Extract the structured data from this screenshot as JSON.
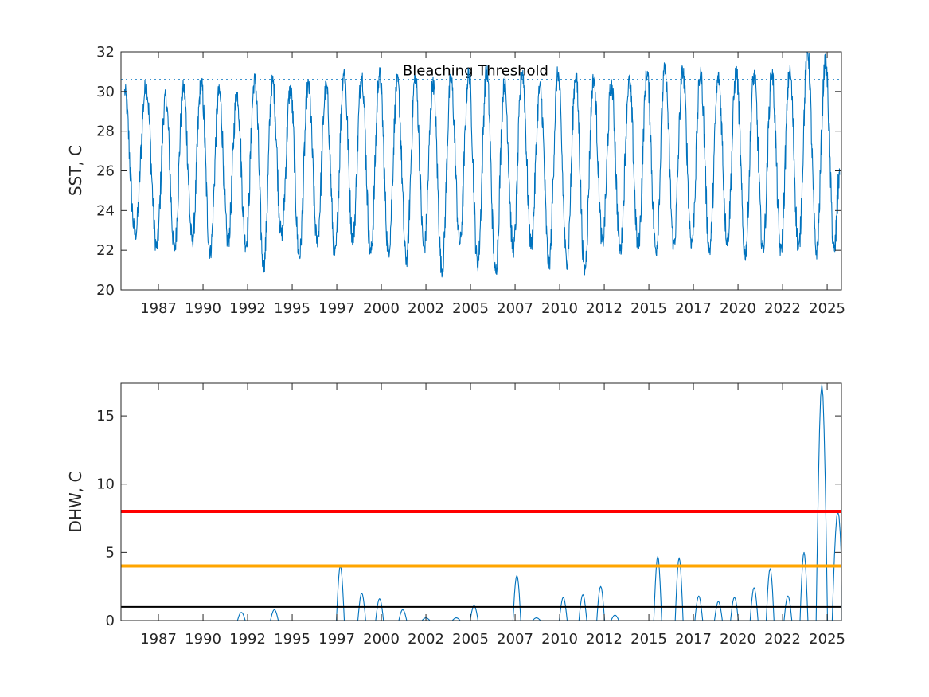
{
  "chart_data": [
    {
      "type": "line",
      "title": "",
      "xlabel": "",
      "ylabel": "SST, C",
      "ylim": [
        20,
        32
      ],
      "xlim": [
        1984.8,
        2025.2
      ],
      "grid": false,
      "legend": "none",
      "yticks": [
        "20",
        "22",
        "24",
        "26",
        "28",
        "30",
        "32"
      ],
      "xticks": [
        "1987",
        "1990",
        "1992",
        "1995",
        "1997",
        "2000",
        "2002",
        "2005",
        "2007",
        "2010",
        "2012",
        "2015",
        "2017",
        "2020",
        "2022",
        "2025"
      ],
      "xtick_values": [
        1986.9,
        1989.4,
        1991.9,
        1994.4,
        1996.9,
        1999.4,
        2001.9,
        2004.4,
        2006.9,
        2009.4,
        2011.9,
        2014.4,
        2016.9,
        2019.4,
        2021.9,
        2024.4
      ],
      "series": [
        {
          "color": "#0072BD",
          "x": [
            1985.0,
            1985.6,
            1986.2,
            1986.8,
            1987.3,
            1987.8,
            1988.3,
            1988.8,
            1989.3,
            1989.8,
            1990.3,
            1990.8,
            1991.3,
            1991.8,
            1992.3,
            1992.8,
            1993.3,
            1993.8,
            1994.3,
            1994.8,
            1995.3,
            1995.8,
            1996.3,
            1996.8,
            1997.3,
            1997.8,
            1998.3,
            1998.8,
            1999.3,
            1999.8,
            2000.3,
            2000.8,
            2001.3,
            2001.8,
            2002.3,
            2002.8,
            2003.3,
            2003.8,
            2004.3,
            2004.8,
            2005.3,
            2005.8,
            2006.3,
            2006.8,
            2007.3,
            2007.8,
            2008.3,
            2008.8,
            2009.3,
            2009.8,
            2010.3,
            2010.8,
            2011.3,
            2011.8,
            2012.3,
            2012.8,
            2013.3,
            2013.8,
            2014.3,
            2014.8,
            2015.3,
            2015.8,
            2016.3,
            2016.8,
            2017.3,
            2017.8,
            2018.3,
            2018.8,
            2019.3,
            2019.8,
            2020.3,
            2020.8,
            2021.3,
            2021.8,
            2022.3,
            2022.8,
            2023.3,
            2023.8,
            2024.3,
            2024.8,
            2025.1
          ],
          "y": [
            30.0,
            22.8,
            30.3,
            22.2,
            29.7,
            22.1,
            30.2,
            22.5,
            30.4,
            21.9,
            30.0,
            22.4,
            29.9,
            22.3,
            30.6,
            21.2,
            30.5,
            22.8,
            30.1,
            21.7,
            30.3,
            22.5,
            30.2,
            21.8,
            31.0,
            22.6,
            30.8,
            21.9,
            30.9,
            22.0,
            30.5,
            21.5,
            30.7,
            22.1,
            30.4,
            21.0,
            30.6,
            22.4,
            30.9,
            21.3,
            31.0,
            20.9,
            30.4,
            22.0,
            31.0,
            22.3,
            30.2,
            21.3,
            30.9,
            21.4,
            30.8,
            21.0,
            30.6,
            22.4,
            30.3,
            22.0,
            30.5,
            22.2,
            30.9,
            22.0,
            31.1,
            22.3,
            31.0,
            22.4,
            30.9,
            22.0,
            30.7,
            22.5,
            31.0,
            21.8,
            30.8,
            22.1,
            30.9,
            22.0,
            31.0,
            22.1,
            32.0,
            21.9,
            31.5,
            22.0,
            25.8
          ]
        }
      ],
      "reference_lines": [
        {
          "name": "Bleaching Threshold",
          "y": 30.6,
          "style": "dotted",
          "color": "#0072BD"
        }
      ],
      "annotations": [
        {
          "text": "Bleaching Threshold",
          "x": 2000.6,
          "y": 30.9
        }
      ]
    },
    {
      "type": "line",
      "title": "",
      "xlabel": "",
      "ylabel": "DHW, C",
      "ylim": [
        0,
        17.4
      ],
      "xlim": [
        1984.8,
        2025.2
      ],
      "grid": false,
      "legend": "none",
      "yticks": [
        "0",
        "5",
        "10",
        "15"
      ],
      "ytick_values": [
        0,
        5,
        10,
        15
      ],
      "xticks": [
        "1987",
        "1990",
        "1992",
        "1995",
        "1997",
        "2000",
        "2002",
        "2005",
        "2007",
        "2010",
        "2012",
        "2015",
        "2017",
        "2020",
        "2022",
        "2025"
      ],
      "xtick_values": [
        1986.9,
        1989.4,
        1991.9,
        1994.4,
        1996.9,
        1999.4,
        2001.9,
        2004.4,
        2006.9,
        2009.4,
        2011.9,
        2014.4,
        2016.9,
        2019.4,
        2021.9,
        2024.4
      ],
      "series": [
        {
          "color": "#0072BD",
          "events": [
            {
              "x": 1991.55,
              "peak": 0.6
            },
            {
              "x": 1993.4,
              "peak": 0.8
            },
            {
              "x": 1997.1,
              "peak": 4.0
            },
            {
              "x": 1998.3,
              "peak": 2.0
            },
            {
              "x": 1999.3,
              "peak": 1.6
            },
            {
              "x": 2000.6,
              "peak": 0.8
            },
            {
              "x": 2001.9,
              "peak": 0.2
            },
            {
              "x": 2003.6,
              "peak": 0.2
            },
            {
              "x": 2004.6,
              "peak": 1.1
            },
            {
              "x": 2007.0,
              "peak": 3.3
            },
            {
              "x": 2008.1,
              "peak": 0.2
            },
            {
              "x": 2009.6,
              "peak": 1.7
            },
            {
              "x": 2010.7,
              "peak": 1.9
            },
            {
              "x": 2011.7,
              "peak": 2.5
            },
            {
              "x": 2012.5,
              "peak": 0.4
            },
            {
              "x": 2014.9,
              "peak": 4.7
            },
            {
              "x": 2016.1,
              "peak": 4.6
            },
            {
              "x": 2017.2,
              "peak": 1.8
            },
            {
              "x": 2018.3,
              "peak": 1.4
            },
            {
              "x": 2019.2,
              "peak": 1.7
            },
            {
              "x": 2020.3,
              "peak": 2.4
            },
            {
              "x": 2021.2,
              "peak": 3.8
            },
            {
              "x": 2022.2,
              "peak": 1.8
            },
            {
              "x": 2023.1,
              "peak": 5.0
            },
            {
              "x": 2024.1,
              "peak": 17.3
            },
            {
              "x": 2025.0,
              "peak": 8.0
            }
          ]
        }
      ],
      "reference_lines": [
        {
          "y": 8,
          "color": "#FF0000",
          "style": "solid"
        },
        {
          "y": 4,
          "color": "#FFA500",
          "style": "solid"
        },
        {
          "y": 1,
          "color": "#000000",
          "style": "solid"
        }
      ]
    }
  ]
}
